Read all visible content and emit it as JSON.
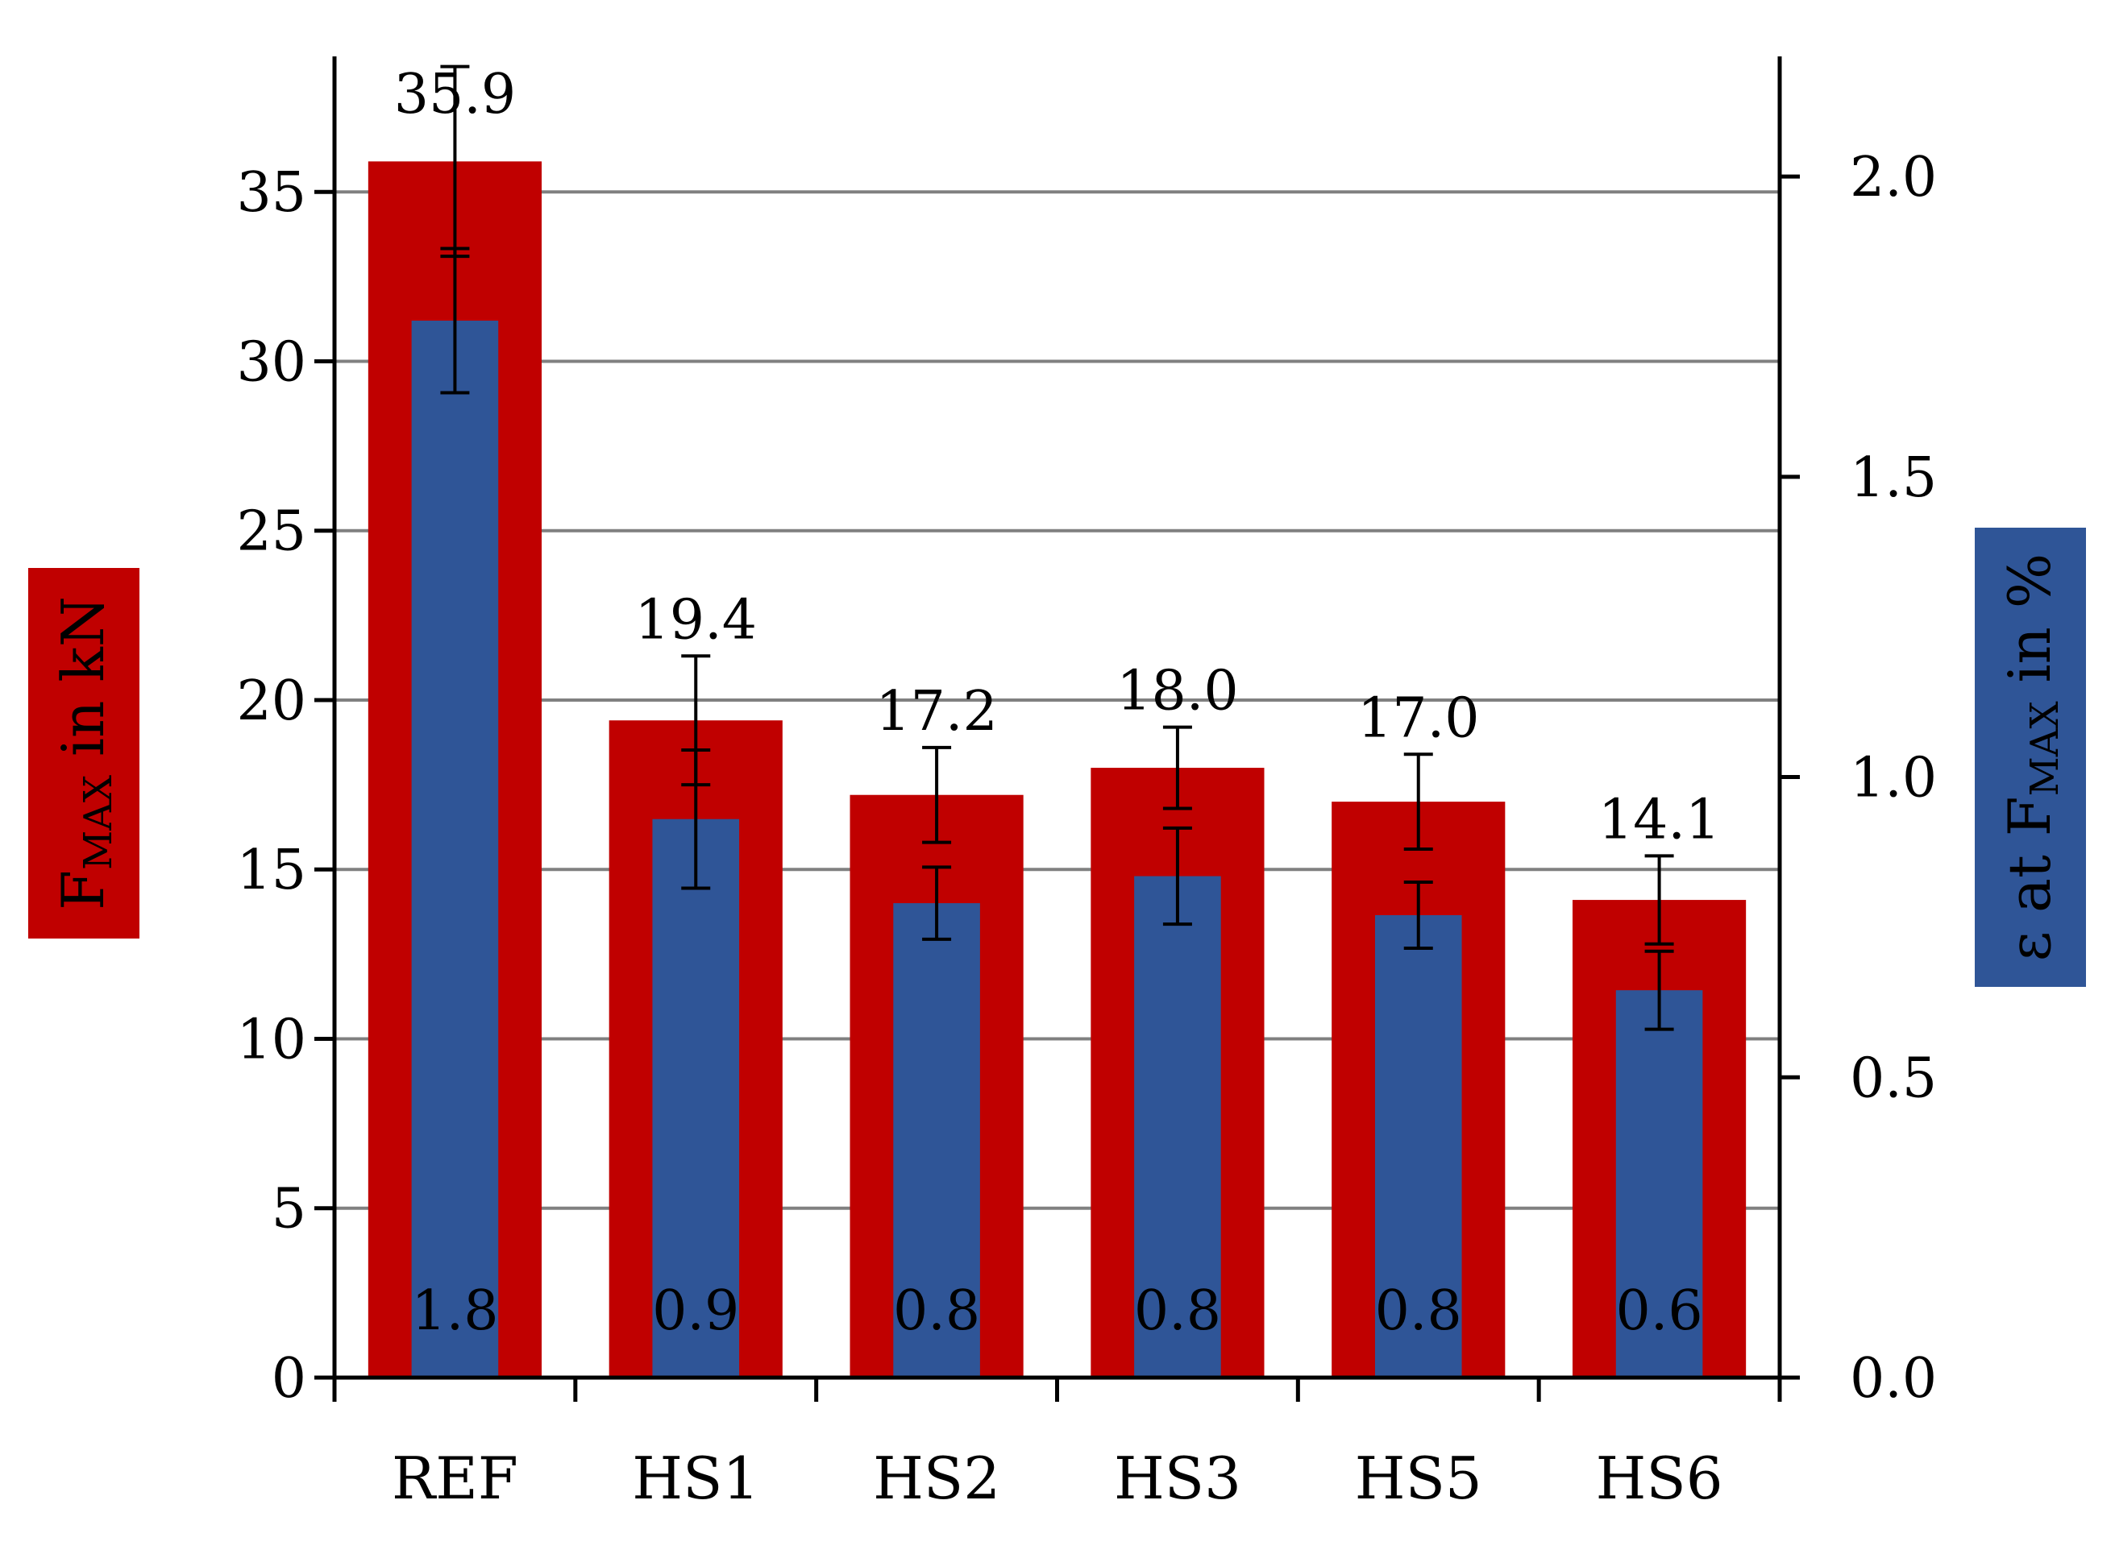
{
  "chart_data": {
    "type": "bar",
    "categories": [
      "REF",
      "HS1",
      "HS2",
      "HS3",
      "HS5",
      "HS6"
    ],
    "series": [
      {
        "axis": "left",
        "color": "#c00000",
        "values": [
          35.9,
          19.4,
          17.2,
          18.0,
          17.0,
          14.1
        ],
        "errors": [
          2.8,
          1.9,
          1.4,
          1.2,
          1.4,
          1.3
        ],
        "labels": [
          "35.9",
          "19.4",
          "17.2",
          "18.0",
          "17.0",
          "14.1"
        ]
      },
      {
        "axis": "right",
        "color": "#2f5597",
        "values": [
          1.76,
          0.93,
          0.79,
          0.835,
          0.77,
          0.645
        ],
        "errors": [
          0.12,
          0.115,
          0.06,
          0.08,
          0.055,
          0.065
        ],
        "labels": [
          "1.8",
          "0.9",
          "0.8",
          "0.8",
          "0.8",
          "0.6"
        ]
      }
    ],
    "y_left": {
      "label_main": "F",
      "label_sub": "MAX",
      "label_rest": " in kN",
      "label_bg": "#c00000",
      "ylim": [
        0,
        39
      ],
      "ticks": [
        0,
        5,
        10,
        15,
        20,
        25,
        30,
        35
      ],
      "tick_labels": [
        "0",
        "5",
        "10",
        "15",
        "20",
        "25",
        "30",
        "35"
      ]
    },
    "y_right": {
      "label_main": "ε at F",
      "label_sub": "MAX",
      "label_rest": " in %",
      "label_bg": "#2f5597",
      "ylim": [
        0,
        2.2
      ],
      "ticks": [
        0,
        0.5,
        1.0,
        1.5,
        2.0
      ],
      "tick_labels": [
        "0.0",
        "0.5",
        "1.0",
        "1.5",
        "2.0"
      ]
    },
    "grid": true,
    "grid_color": "#808080",
    "legend": "none"
  }
}
